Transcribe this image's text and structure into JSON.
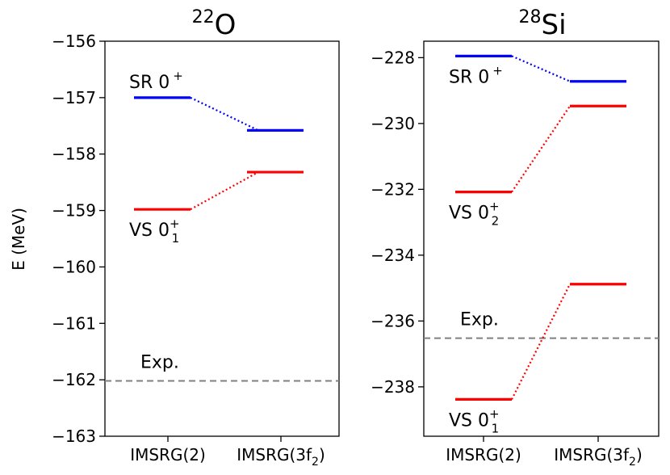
{
  "ylabel": "E (MeV)",
  "chart_data": [
    {
      "type": "level-diagram",
      "title_sup": "22",
      "title_main": "O",
      "categories": [
        "IMSRG(2)",
        "IMSRG(3f2)"
      ],
      "category_labels": [
        {
          "main": "IMSRG(2)",
          "sub": ""
        },
        {
          "main": "IMSRG(3f",
          "sub": "2",
          "tail": ")"
        }
      ],
      "ylabel": "E (MeV)",
      "ylim": [
        -163,
        -156
      ],
      "yticks": [
        -156,
        -157,
        -158,
        -159,
        -160,
        -161,
        -162,
        -163
      ],
      "ytick_labels": [
        "−156",
        "−157",
        "−158",
        "−159",
        "−160",
        "−161",
        "−162",
        "−163"
      ],
      "series": [
        {
          "name": "SR 0+",
          "label_main": "SR 0",
          "label_sup": "+",
          "label_sub": "",
          "color": "#0000ff",
          "values": [
            -157.0,
            -157.58
          ],
          "label_at": 0,
          "label_pos": "above"
        },
        {
          "name": "VS 0_1+",
          "label_main": "VS 0",
          "label_sup": "+",
          "label_sub": "1",
          "color": "#ff0000",
          "values": [
            -158.98,
            -158.32
          ],
          "label_at": 0,
          "label_pos": "below"
        }
      ],
      "experiment": {
        "label": "Exp.",
        "value": -162.02,
        "color": "#808080"
      }
    },
    {
      "type": "level-diagram",
      "title_sup": "28",
      "title_main": "Si",
      "categories": [
        "IMSRG(2)",
        "IMSRG(3f2)"
      ],
      "category_labels": [
        {
          "main": "IMSRG(2)",
          "sub": ""
        },
        {
          "main": "IMSRG(3f",
          "sub": "2",
          "tail": ")"
        }
      ],
      "ylabel": "",
      "ylim": [
        -239.5,
        -227.5
      ],
      "yticks": [
        -228,
        -230,
        -232,
        -234,
        -236,
        -238
      ],
      "ytick_labels": [
        "−228",
        "−230",
        "−232",
        "−234",
        "−236",
        "−238"
      ],
      "series": [
        {
          "name": "SR 0+",
          "label_main": "SR 0",
          "label_sup": "+",
          "label_sub": "",
          "color": "#0000ff",
          "values": [
            -227.95,
            -228.72
          ],
          "label_at": 0,
          "label_pos": "below"
        },
        {
          "name": "VS 0_2+",
          "label_main": "VS 0",
          "label_sup": "+",
          "label_sub": "2",
          "color": "#ff0000",
          "values": [
            -232.08,
            -229.47
          ],
          "label_at": 0,
          "label_pos": "below"
        },
        {
          "name": "VS 0_1+",
          "label_main": "VS 0",
          "label_sup": "+",
          "label_sub": "1",
          "color": "#ff0000",
          "values": [
            -238.38,
            -234.88
          ],
          "label_at": 0,
          "label_pos": "below"
        }
      ],
      "experiment": {
        "label": "Exp.",
        "value": -236.52,
        "color": "#808080"
      }
    }
  ]
}
